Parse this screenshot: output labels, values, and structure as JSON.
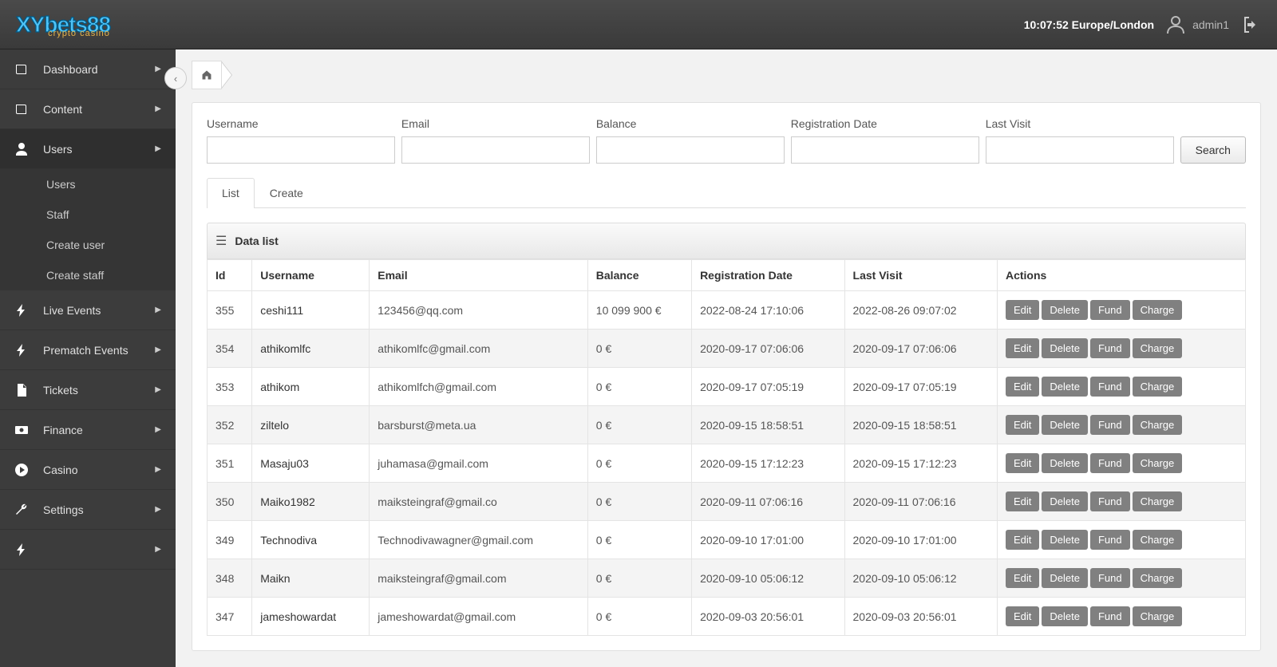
{
  "header": {
    "logo_main": "XYbets88",
    "logo_sub": "crypto casino",
    "clock": "10:07:52 Europe/London",
    "username": "admin1"
  },
  "sidebar": {
    "items": [
      {
        "icon": "book",
        "label": "Dashboard",
        "expand": true
      },
      {
        "icon": "book",
        "label": "Content",
        "expand": true
      },
      {
        "icon": "user",
        "label": "Users",
        "expand": true,
        "active": true,
        "children": [
          {
            "label": "Users"
          },
          {
            "label": "Staff"
          },
          {
            "label": "Create user"
          },
          {
            "label": "Create staff"
          }
        ]
      },
      {
        "icon": "bolt",
        "label": "Live Events",
        "expand": true
      },
      {
        "icon": "bolt",
        "label": "Prematch Events",
        "expand": true
      },
      {
        "icon": "file",
        "label": "Tickets",
        "expand": true
      },
      {
        "icon": "cash",
        "label": "Finance",
        "expand": true
      },
      {
        "icon": "play",
        "label": "Casino",
        "expand": true
      },
      {
        "icon": "wrench",
        "label": "Settings",
        "expand": true
      },
      {
        "icon": "bolt",
        "label": "",
        "expand": true
      }
    ]
  },
  "filters": {
    "username": {
      "label": "Username",
      "value": ""
    },
    "email": {
      "label": "Email",
      "value": ""
    },
    "balance": {
      "label": "Balance",
      "value": ""
    },
    "regdate": {
      "label": "Registration Date",
      "value": ""
    },
    "lastvisit": {
      "label": "Last Visit",
      "value": ""
    },
    "search_btn": "Search"
  },
  "tabs": {
    "list": "List",
    "create": "Create"
  },
  "datalist": {
    "title": "Data list"
  },
  "table": {
    "columns": [
      "Id",
      "Username",
      "Email",
      "Balance",
      "Registration Date",
      "Last Visit",
      "Actions"
    ],
    "action_labels": {
      "edit": "Edit",
      "delete": "Delete",
      "fund": "Fund",
      "charge": "Charge"
    },
    "rows": [
      {
        "id": "355",
        "username": "ceshi111",
        "email": "123456@qq.com",
        "balance": "10 099 900 €",
        "reg": "2022-08-24 17:10:06",
        "visit": "2022-08-26 09:07:02"
      },
      {
        "id": "354",
        "username": "athikomlfc",
        "email": "athikomlfc@gmail.com",
        "balance": "0 €",
        "reg": "2020-09-17 07:06:06",
        "visit": "2020-09-17 07:06:06"
      },
      {
        "id": "353",
        "username": "athikom",
        "email": "athikomlfch@gmail.com",
        "balance": "0 €",
        "reg": "2020-09-17 07:05:19",
        "visit": "2020-09-17 07:05:19"
      },
      {
        "id": "352",
        "username": "ziltelo",
        "email": "barsburst@meta.ua",
        "balance": "0 €",
        "reg": "2020-09-15 18:58:51",
        "visit": "2020-09-15 18:58:51"
      },
      {
        "id": "351",
        "username": "Masaju03",
        "email": "juhamasa@gmail.com",
        "balance": "0 €",
        "reg": "2020-09-15 17:12:23",
        "visit": "2020-09-15 17:12:23"
      },
      {
        "id": "350",
        "username": "Maiko1982",
        "email": "maiksteingraf@gmail.co",
        "balance": "0 €",
        "reg": "2020-09-11 07:06:16",
        "visit": "2020-09-11 07:06:16"
      },
      {
        "id": "349",
        "username": "Technodiva",
        "email": "Technodivawagner@gmail.com",
        "balance": "0 €",
        "reg": "2020-09-10 17:01:00",
        "visit": "2020-09-10 17:01:00"
      },
      {
        "id": "348",
        "username": "Maikn",
        "email": "maiksteingraf@gmail.com",
        "balance": "0 €",
        "reg": "2020-09-10 05:06:12",
        "visit": "2020-09-10 05:06:12"
      },
      {
        "id": "347",
        "username": "jameshowardat",
        "email": "jameshowardat@gmail.com",
        "balance": "0 €",
        "reg": "2020-09-03 20:56:01",
        "visit": "2020-09-03 20:56:01"
      }
    ]
  },
  "colors": {
    "accent": "#4fc3f7",
    "sidebar_bg": "#3c3c3c",
    "action_btn": "#808080"
  }
}
